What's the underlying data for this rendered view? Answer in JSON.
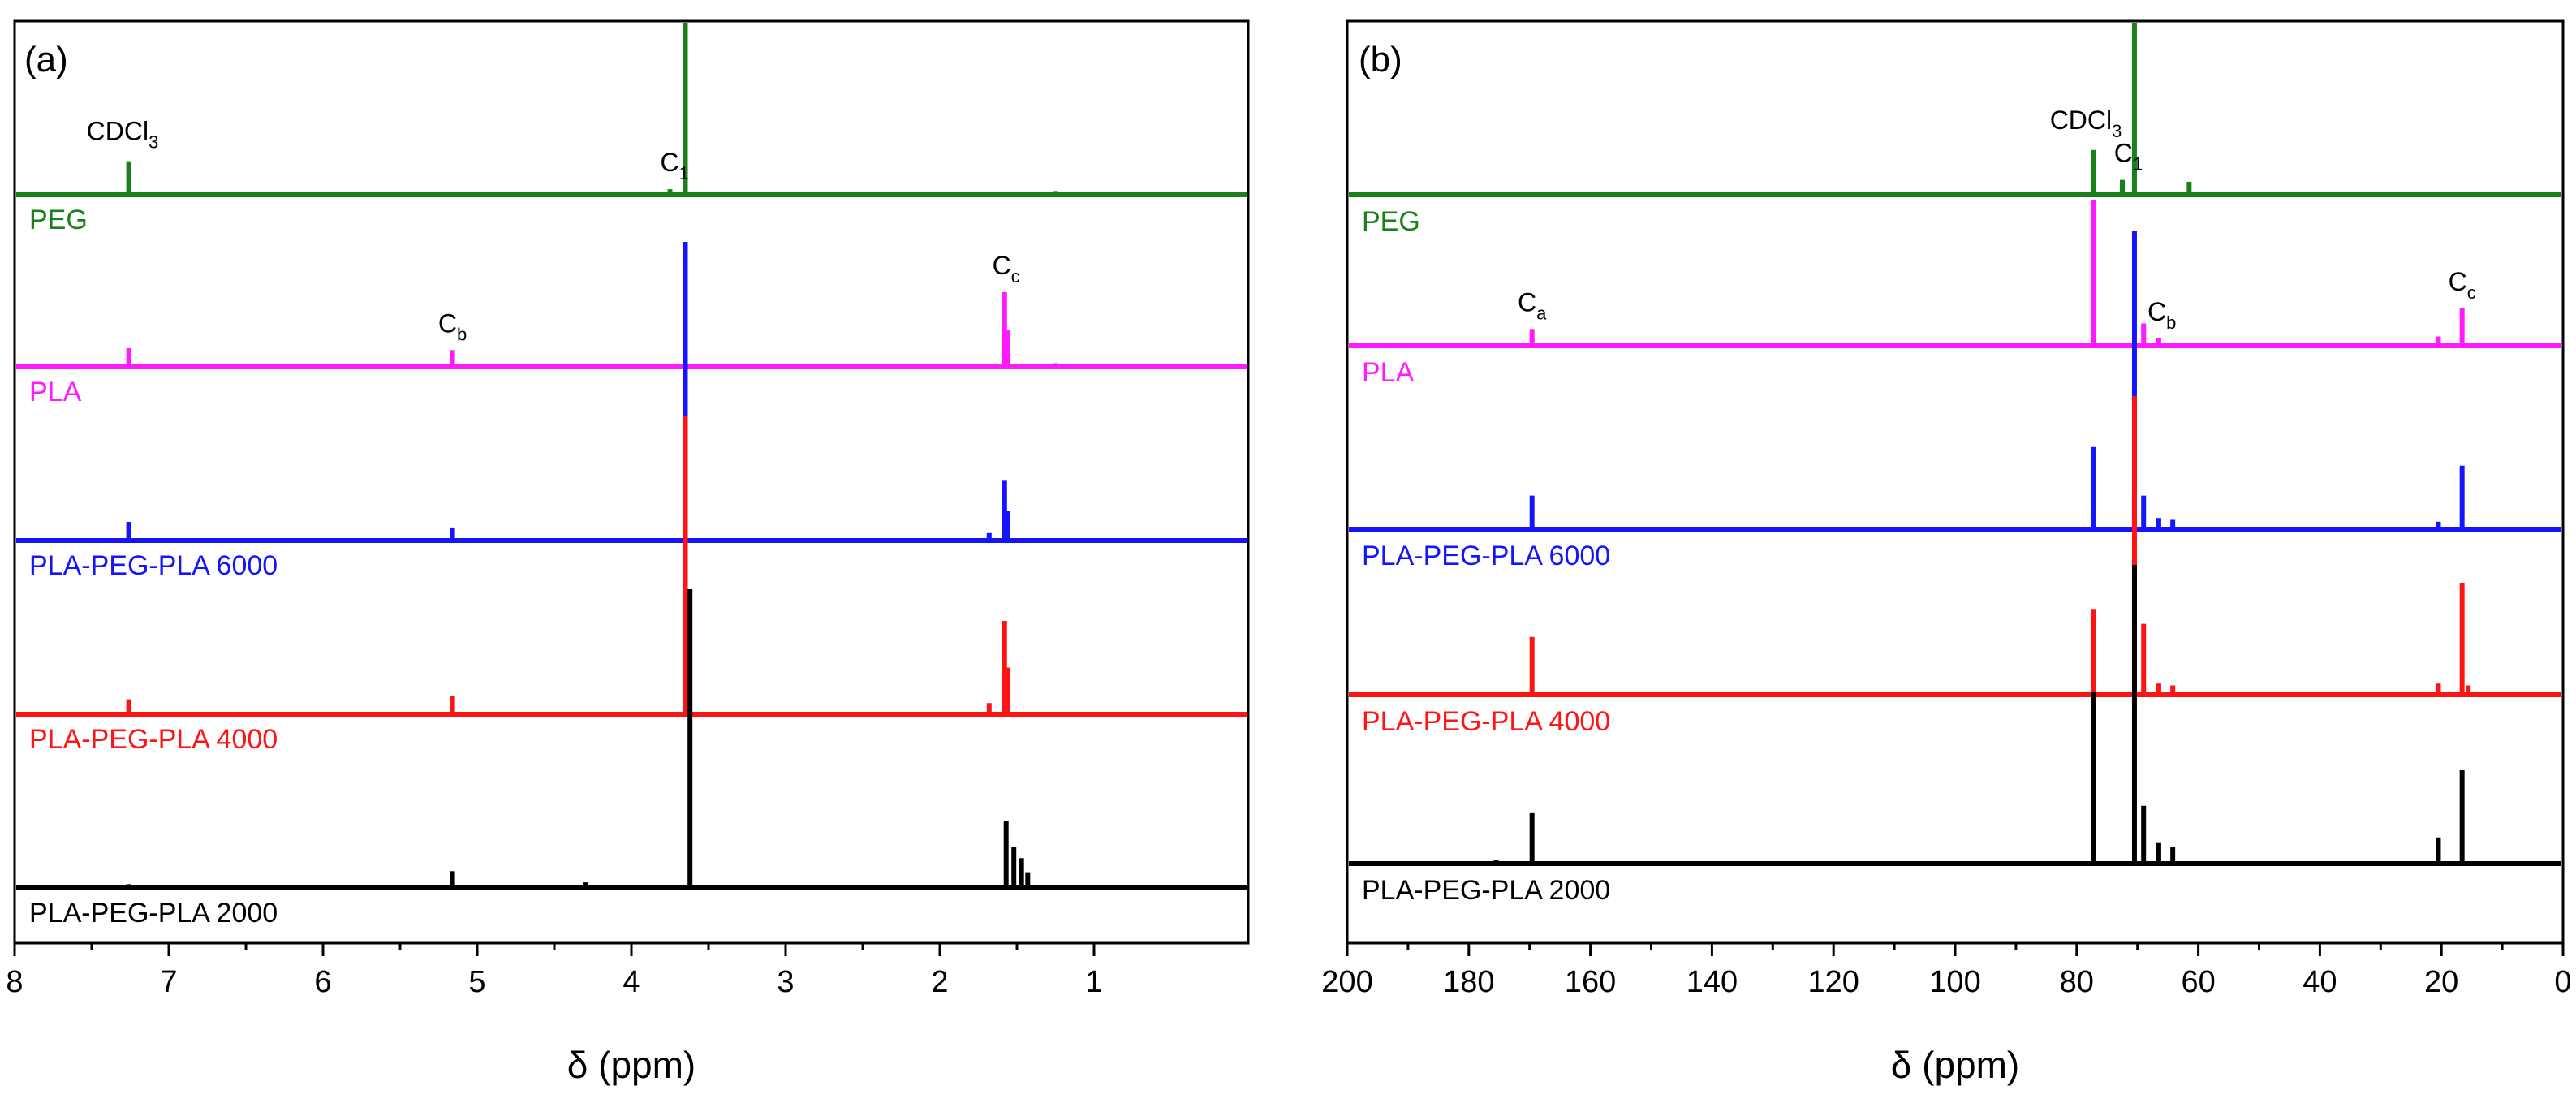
{
  "chart_data": [
    {
      "panel": "(a)",
      "type": "line",
      "xlabel": "δ (ppm)",
      "xlim": [
        8,
        0
      ],
      "xticks": [
        8,
        7,
        6,
        5,
        4,
        3,
        2,
        1
      ],
      "series": [
        {
          "name": "PEG",
          "color": "#1b7f1b",
          "peaks": [
            [
              7.26,
              0.18
            ],
            [
              3.75,
              0.03
            ],
            [
              3.65,
              1.6
            ],
            [
              1.25,
              0.02
            ]
          ]
        },
        {
          "name": "PLA",
          "color": "#ff1aff",
          "peaks": [
            [
              7.26,
              0.1
            ],
            [
              5.16,
              0.09
            ],
            [
              1.58,
              0.4
            ],
            [
              1.56,
              0.2
            ],
            [
              1.25,
              0.02
            ]
          ]
        },
        {
          "name": "PLA-PEG-PLA 6000",
          "color": "#1414ff",
          "peaks": [
            [
              7.26,
              0.1
            ],
            [
              5.16,
              0.07
            ],
            [
              3.65,
              1.6
            ],
            [
              1.58,
              0.32
            ],
            [
              1.56,
              0.16
            ],
            [
              1.68,
              0.04
            ]
          ]
        },
        {
          "name": "PLA-PEG-PLA 4000",
          "color": "#ff1414",
          "peaks": [
            [
              7.26,
              0.08
            ],
            [
              5.16,
              0.1
            ],
            [
              3.65,
              1.6
            ],
            [
              1.58,
              0.5
            ],
            [
              1.56,
              0.25
            ],
            [
              1.68,
              0.06
            ]
          ]
        },
        {
          "name": "PLA-PEG-PLA 2000",
          "color": "#000000",
          "peaks": [
            [
              7.26,
              0.02
            ],
            [
              5.16,
              0.09
            ],
            [
              4.3,
              0.03
            ],
            [
              3.62,
              1.6
            ],
            [
              1.57,
              0.36
            ],
            [
              1.52,
              0.22
            ],
            [
              1.47,
              0.16
            ],
            [
              1.43,
              0.08
            ]
          ]
        }
      ],
      "annotations": [
        {
          "main": "C",
          "sub": "1",
          "x": 3.72,
          "series": 0
        },
        {
          "main": "CDCl",
          "sub": "3",
          "x": 7.3,
          "series": 0
        },
        {
          "main": "C",
          "sub": "b",
          "x": 5.16,
          "series": 1
        },
        {
          "main": "C",
          "sub": "c",
          "x": 1.57,
          "series": 1
        }
      ]
    },
    {
      "panel": "(b)",
      "type": "line",
      "xlabel": "δ (ppm)",
      "xlim": [
        200,
        0
      ],
      "xticks": [
        200,
        180,
        160,
        140,
        120,
        100,
        80,
        60,
        40,
        20,
        0
      ],
      "series": [
        {
          "name": "PEG",
          "color": "#1b7f1b",
          "peaks": [
            [
              77.2,
              0.24
            ],
            [
              72.5,
              0.08
            ],
            [
              70.5,
              1.6
            ],
            [
              61.5,
              0.07
            ]
          ]
        },
        {
          "name": "PLA",
          "color": "#ff1aff",
          "peaks": [
            [
              169.6,
              0.09
            ],
            [
              77.2,
              0.78
            ],
            [
              69.0,
              0.12
            ],
            [
              66.5,
              0.04
            ],
            [
              20.5,
              0.05
            ],
            [
              16.6,
              0.2
            ]
          ]
        },
        {
          "name": "PLA-PEG-PLA 6000",
          "color": "#1414ff",
          "peaks": [
            [
              169.6,
              0.18
            ],
            [
              77.2,
              0.44
            ],
            [
              70.5,
              1.6
            ],
            [
              69.0,
              0.18
            ],
            [
              66.5,
              0.06
            ],
            [
              64.2,
              0.05
            ],
            [
              20.5,
              0.04
            ],
            [
              16.6,
              0.34
            ]
          ]
        },
        {
          "name": "PLA-PEG-PLA 4000",
          "color": "#ff1414",
          "peaks": [
            [
              169.6,
              0.31
            ],
            [
              77.2,
              0.46
            ],
            [
              70.5,
              1.6
            ],
            [
              69.0,
              0.38
            ],
            [
              66.5,
              0.06
            ],
            [
              64.2,
              0.05
            ],
            [
              20.5,
              0.06
            ],
            [
              16.6,
              0.6
            ],
            [
              15.6,
              0.05
            ]
          ]
        },
        {
          "name": "PLA-PEG-PLA 2000",
          "color": "#000000",
          "peaks": [
            [
              175.5,
              0.02
            ],
            [
              169.6,
              0.27
            ],
            [
              77.2,
              0.92
            ],
            [
              70.5,
              1.6
            ],
            [
              69.0,
              0.31
            ],
            [
              66.5,
              0.11
            ],
            [
              64.2,
              0.09
            ],
            [
              20.5,
              0.14
            ],
            [
              16.6,
              0.5
            ]
          ]
        }
      ],
      "annotations": [
        {
          "main": "C",
          "sub": "1",
          "x": 71.5,
          "series": 0
        },
        {
          "main": "CDCl",
          "sub": "3",
          "x": 78.5,
          "series": 0
        },
        {
          "main": "C",
          "sub": "a",
          "x": 169.6,
          "series": 1
        },
        {
          "main": "C",
          "sub": "b",
          "x": 66.0,
          "series": 1
        },
        {
          "main": "C",
          "sub": "c",
          "x": 16.6,
          "series": 1
        }
      ]
    }
  ]
}
